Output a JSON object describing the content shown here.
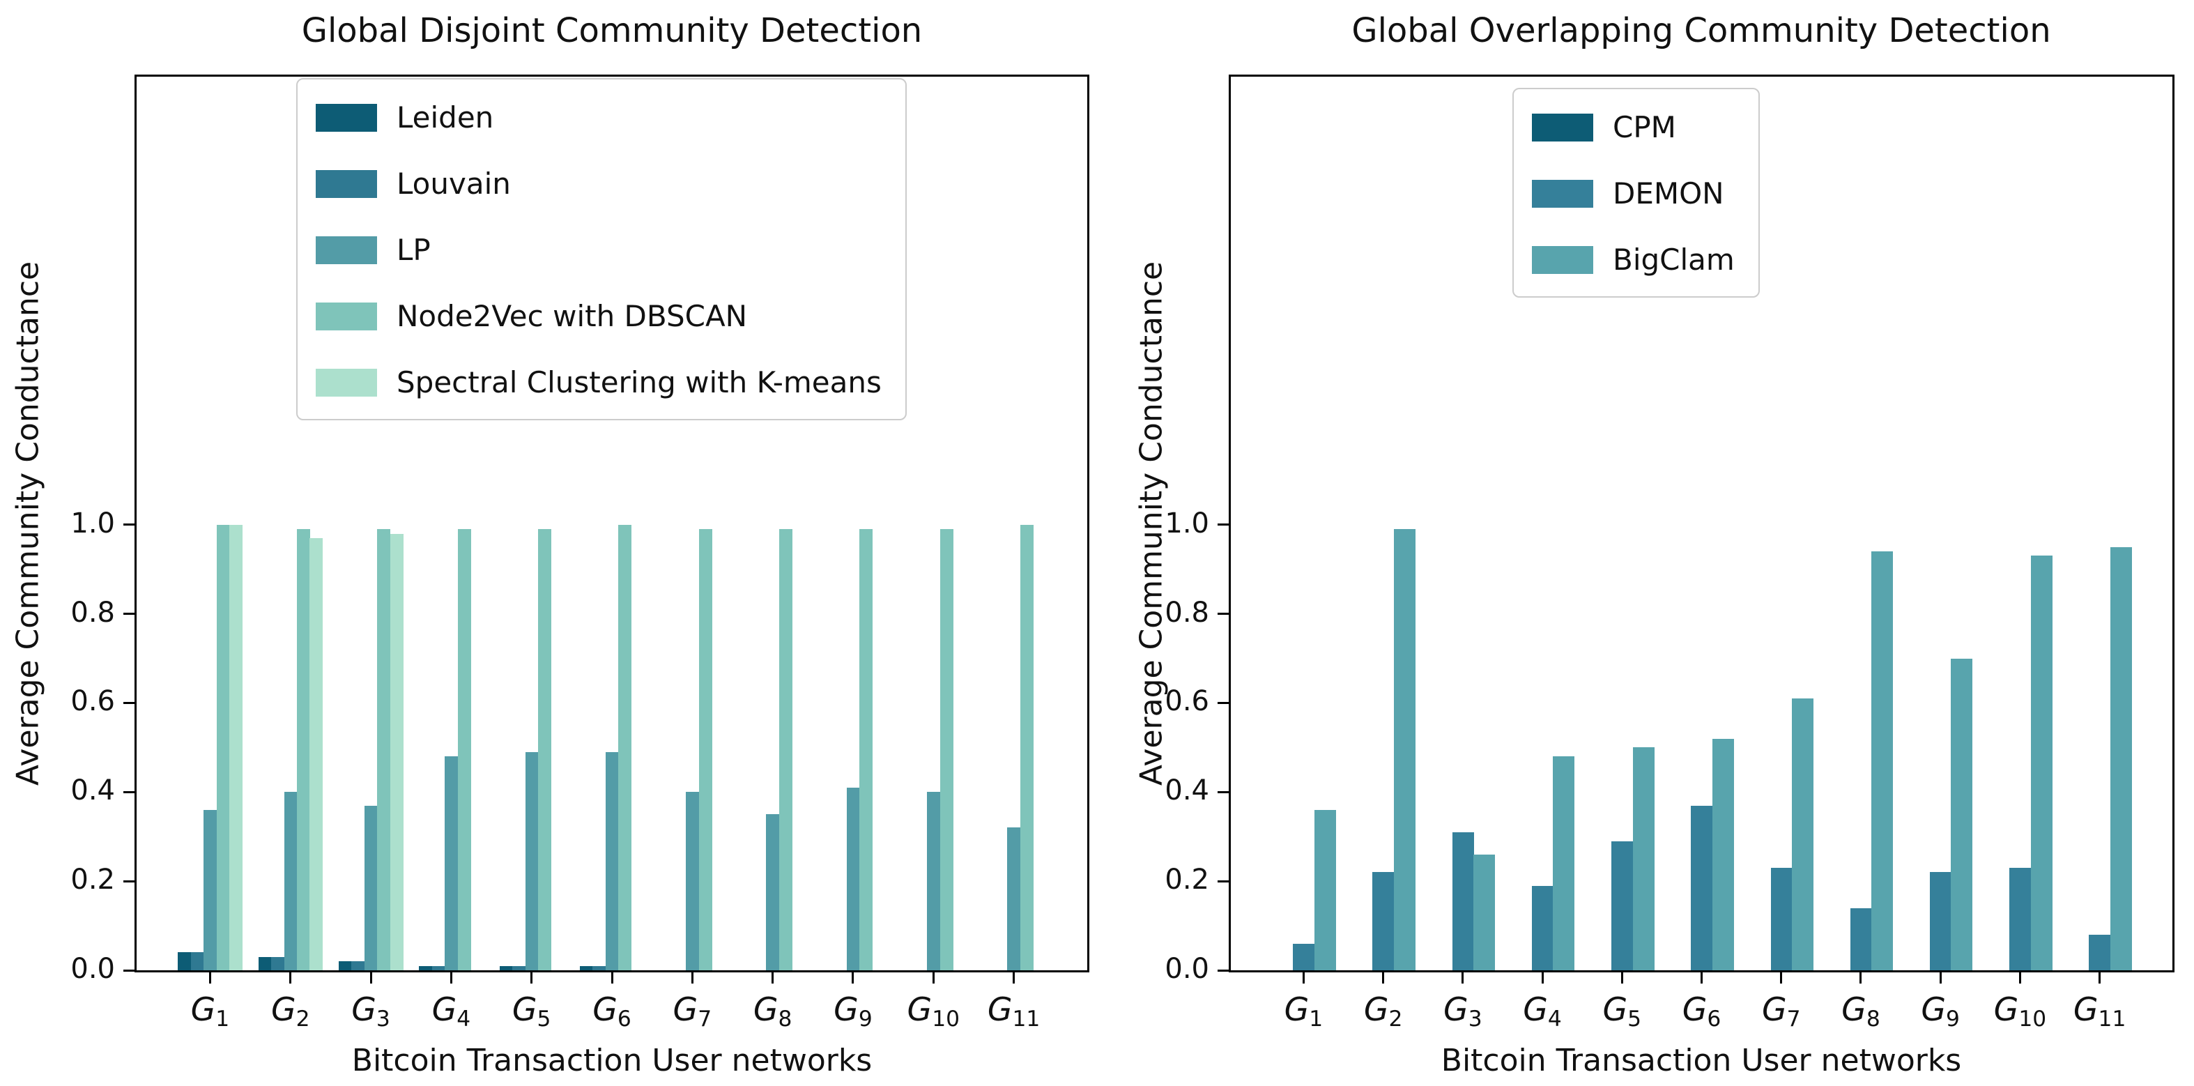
{
  "figure": {
    "background": "#ffffff",
    "text_color": "#111111",
    "spine_color": "#000000"
  },
  "chart_data": [
    {
      "type": "bar",
      "title": "Global Disjoint Community Detection",
      "xlabel": "Bitcoin Transaction User networks",
      "ylabel": "Average Community Conductance",
      "categories": [
        "G_1",
        "G_2",
        "G_3",
        "G_4",
        "G_5",
        "G_6",
        "G_7",
        "G_8",
        "G_9",
        "G_10",
        "G_11"
      ],
      "ylim": [
        0,
        2.01
      ],
      "yticks": [
        0.0,
        0.2,
        0.4,
        0.6,
        0.8,
        1.0
      ],
      "yticklabels": [
        "0.0",
        "0.2",
        "0.4",
        "0.6",
        "0.8",
        "1.0"
      ],
      "grid": false,
      "legend_position": "upper-left-inside",
      "series": [
        {
          "name": "Leiden",
          "color": "#0d5c75",
          "values": [
            0.04,
            0.03,
            0.02,
            0.01,
            0.01,
            0.01,
            0,
            0,
            0,
            0,
            0
          ]
        },
        {
          "name": "Louvain",
          "color": "#2f7992",
          "values": [
            0.04,
            0.03,
            0.02,
            0.01,
            0.01,
            0.01,
            0,
            0,
            0,
            0,
            0
          ]
        },
        {
          "name": "LP",
          "color": "#539ca7",
          "values": [
            0.36,
            0.4,
            0.37,
            0.48,
            0.49,
            0.49,
            0.4,
            0.35,
            0.41,
            0.4,
            0.32
          ]
        },
        {
          "name": "Node2Vec with DBSCAN",
          "color": "#7fc4ba",
          "values": [
            1.0,
            0.99,
            0.99,
            0.99,
            0.99,
            1.0,
            0.99,
            0.99,
            0.99,
            0.99,
            1.0
          ]
        },
        {
          "name": "Spectral Clustering with K-means",
          "color": "#ace0cd",
          "values": [
            1.0,
            0.97,
            0.98,
            0,
            0,
            0,
            0,
            0,
            0,
            0,
            0
          ]
        }
      ]
    },
    {
      "type": "bar",
      "title": "Global Overlapping Community Detection",
      "xlabel": "Bitcoin Transaction User networks",
      "ylabel": "Average Community Conductance",
      "categories": [
        "G_1",
        "G_2",
        "G_3",
        "G_4",
        "G_5",
        "G_6",
        "G_7",
        "G_8",
        "G_9",
        "G_10",
        "G_11"
      ],
      "ylim": [
        0,
        2.01
      ],
      "yticks": [
        0.0,
        0.2,
        0.4,
        0.6,
        0.8,
        1.0
      ],
      "yticklabels": [
        "0.0",
        "0.2",
        "0.4",
        "0.6",
        "0.8",
        "1.0"
      ],
      "grid": false,
      "legend_position": "upper-center-inside",
      "series": [
        {
          "name": "CPM",
          "color": "#0d5c75",
          "values": [
            0,
            0,
            0,
            0,
            0,
            0,
            0,
            0,
            0,
            0,
            0
          ]
        },
        {
          "name": "DEMON",
          "color": "#35809a",
          "values": [
            0.06,
            0.22,
            0.31,
            0.19,
            0.29,
            0.37,
            0.23,
            0.14,
            0.22,
            0.23,
            0.08
          ]
        },
        {
          "name": "BigClam",
          "color": "#58a4ad",
          "values": [
            0.36,
            0.99,
            0.26,
            0.48,
            0.5,
            0.52,
            0.61,
            0.94,
            0.7,
            0.93,
            0.95
          ]
        }
      ]
    }
  ]
}
